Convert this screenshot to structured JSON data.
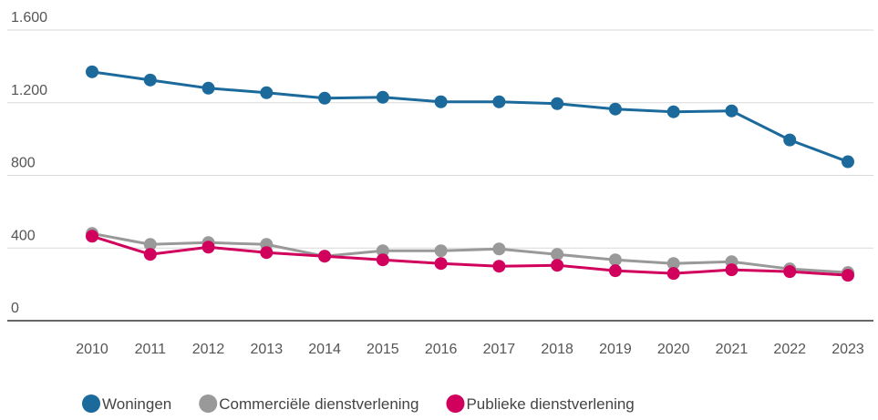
{
  "chart_data": {
    "type": "line",
    "categories": [
      "2010",
      "2011",
      "2012",
      "2013",
      "2014",
      "2015",
      "2016",
      "2017",
      "2018",
      "2019",
      "2020",
      "2021",
      "2022",
      "2023"
    ],
    "series": [
      {
        "name": "Woningen",
        "color": "#1b6a9b",
        "values": [
          1370,
          1325,
          1280,
          1255,
          1225,
          1230,
          1205,
          1205,
          1195,
          1165,
          1150,
          1155,
          995,
          875
        ]
      },
      {
        "name": "Commerciële dienstverlening",
        "color": "#999999",
        "values": [
          480,
          420,
          430,
          420,
          355,
          385,
          385,
          395,
          365,
          335,
          315,
          325,
          285,
          265
        ]
      },
      {
        "name": "Publieke dienstverlening",
        "color": "#d1005d",
        "values": [
          465,
          365,
          405,
          375,
          355,
          335,
          315,
          300,
          305,
          275,
          260,
          280,
          270,
          250
        ]
      }
    ],
    "ylim": [
      0,
      1600
    ],
    "yticks": [
      0,
      400,
      800,
      {
        "value": 1200,
        "label": "1.200"
      },
      {
        "value": 1600,
        "label": "1.600"
      }
    ],
    "grid": true,
    "legend": "bottom"
  }
}
